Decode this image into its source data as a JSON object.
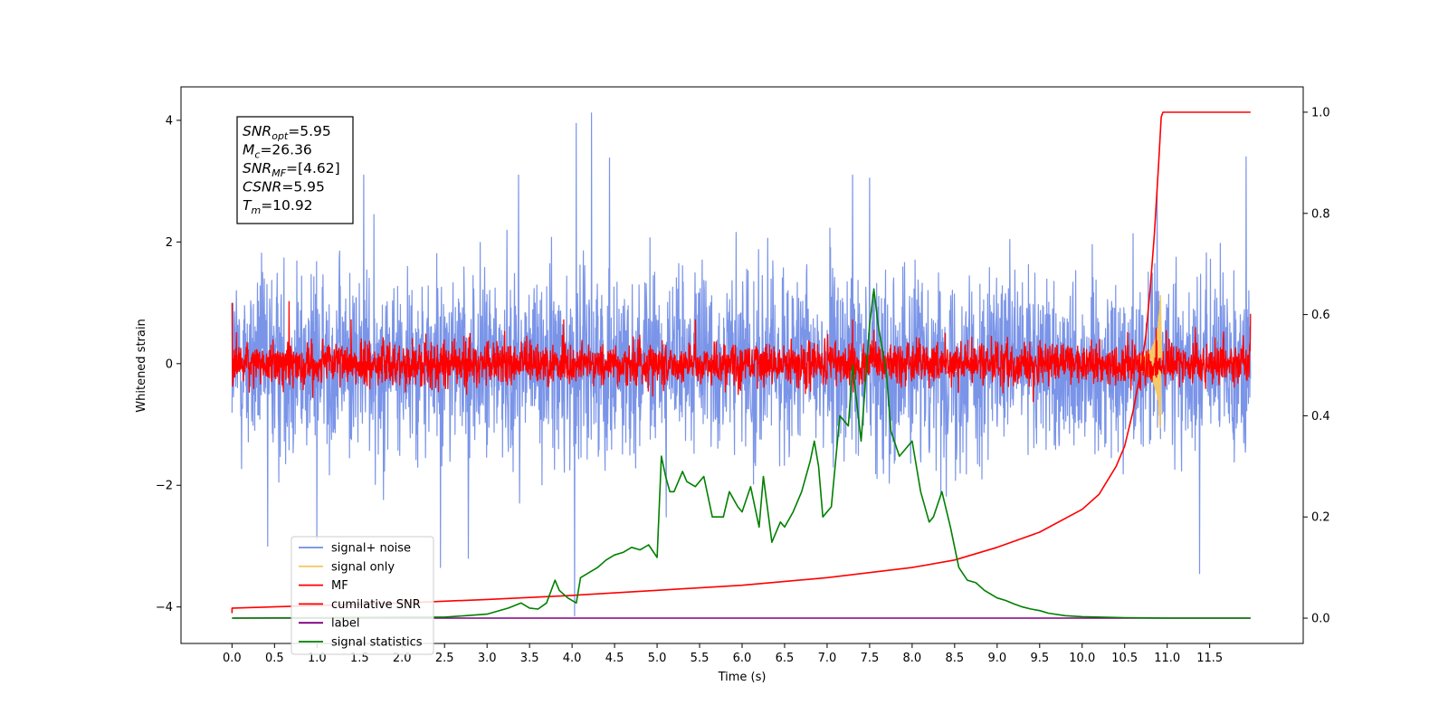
{
  "chart_data": {
    "type": "line",
    "xlabel": "Time (s)",
    "ylabel": "Whitened strain",
    "xlim": [
      -0.6,
      12.6
    ],
    "ylim": [
      -4.6,
      4.55
    ],
    "y2lim": [
      -0.05,
      1.05
    ],
    "x_ticks": [
      0.0,
      0.5,
      1.0,
      1.5,
      2.0,
      2.5,
      3.0,
      3.5,
      4.0,
      4.5,
      5.0,
      5.5,
      6.0,
      6.5,
      7.0,
      7.5,
      8.0,
      8.5,
      9.0,
      9.5,
      10.0,
      10.5,
      11.0,
      11.5
    ],
    "x_tick_labels": [
      "0.0",
      "0.5",
      "1.0",
      "1.5",
      "2.0",
      "2.5",
      "3.0",
      "3.5",
      "4.0",
      "4.5",
      "5.0",
      "5.5",
      "6.0",
      "6.5",
      "7.0",
      "7.5",
      "8.0",
      "8.5",
      "9.0",
      "9.5",
      "10.0",
      "10.5",
      "11.0",
      "11.5"
    ],
    "y_ticks": [
      -4,
      -2,
      0,
      2,
      4
    ],
    "y_tick_labels": [
      "−4",
      "−2",
      "0",
      "2",
      "4"
    ],
    "y2_ticks": [
      0.0,
      0.2,
      0.4,
      0.6,
      0.8,
      1.0
    ],
    "y2_tick_labels": [
      "0.0",
      "0.2",
      "0.4",
      "0.6",
      "0.8",
      "1.0"
    ],
    "grid": false,
    "legend_placement": "lower-left",
    "annotation": {
      "lines": [
        {
          "sym": "SNR",
          "sub": "opt",
          "rest": "=5.95"
        },
        {
          "sym": "M",
          "sub": "c",
          "rest": "=26.36"
        },
        {
          "sym": "SNR",
          "sub": "MF",
          "rest": "=[4.62]"
        },
        {
          "sym": "CSNR",
          "sub": "",
          "rest": "=5.95"
        },
        {
          "sym": "T",
          "sub": "m",
          "rest": "=10.92"
        }
      ]
    },
    "series": [
      {
        "name": "signal+ noise",
        "color": "#6f8be6",
        "axis": "left",
        "style": "noise",
        "x_range": [
          0,
          11.98
        ],
        "std": 0.75,
        "spikes": [
          [
            1.0,
            -2.9
          ],
          [
            1.67,
            2.45
          ],
          [
            4.03,
            -4.15
          ],
          [
            4.05,
            3.95
          ],
          [
            4.23,
            4.12
          ],
          [
            4.44,
            3.38
          ],
          [
            7.3,
            3.1
          ],
          [
            7.5,
            3.05
          ],
          [
            10.88,
            2.95
          ],
          [
            11.38,
            -3.45
          ],
          [
            11.93,
            3.4
          ],
          [
            1.55,
            3.1
          ],
          [
            2.45,
            -3.35
          ],
          [
            2.78,
            -3.2
          ],
          [
            3.37,
            3.1
          ],
          [
            0.42,
            -3.0
          ]
        ]
      },
      {
        "name": "signal only",
        "color": "#f5c96a",
        "axis": "left",
        "style": "chirp",
        "t_merger": 10.92
      },
      {
        "name": "MF",
        "color": "#ff0000",
        "axis": "left",
        "style": "noise",
        "x_range": [
          0,
          11.98
        ],
        "std": 0.18,
        "spikes": [
          [
            0.0,
            1.0
          ],
          [
            0.67,
            1.02
          ],
          [
            0.95,
            -0.55
          ],
          [
            1.4,
            0.72
          ],
          [
            3.9,
            0.72
          ],
          [
            5.45,
            0.72
          ],
          [
            7.3,
            0.72
          ],
          [
            7.55,
            0.55
          ],
          [
            10.87,
            0.58
          ],
          [
            11.98,
            0.82
          ]
        ]
      },
      {
        "name": "cumilative SNR",
        "color": "#ff0000",
        "axis": "right",
        "style": "line",
        "x": [
          0.0,
          0.0,
          0.02,
          1.0,
          2.0,
          3.0,
          4.0,
          5.0,
          6.0,
          7.0,
          8.0,
          8.5,
          9.0,
          9.5,
          10.0,
          10.2,
          10.4,
          10.5,
          10.6,
          10.7,
          10.75,
          10.8,
          10.85,
          10.9,
          10.93,
          10.95,
          11.0,
          11.98
        ],
        "y": [
          0.01,
          0.02,
          0.02,
          0.025,
          0.03,
          0.037,
          0.045,
          0.055,
          0.065,
          0.08,
          0.1,
          0.115,
          0.14,
          0.17,
          0.215,
          0.245,
          0.3,
          0.34,
          0.41,
          0.5,
          0.56,
          0.65,
          0.76,
          0.9,
          0.99,
          1.0,
          1.0,
          1.0
        ]
      },
      {
        "name": "label",
        "color": "#800080",
        "axis": "right",
        "style": "line",
        "x": [
          0.0,
          11.98
        ],
        "y": [
          0.0,
          0.0
        ]
      },
      {
        "name": "signal statistics",
        "color": "#008000",
        "axis": "right",
        "style": "line",
        "x": [
          0.0,
          1.0,
          2.0,
          2.5,
          2.75,
          3.0,
          3.25,
          3.4,
          3.5,
          3.6,
          3.7,
          3.8,
          3.85,
          3.95,
          4.05,
          4.1,
          4.2,
          4.3,
          4.4,
          4.5,
          4.6,
          4.7,
          4.8,
          4.9,
          5.0,
          5.05,
          5.1,
          5.15,
          5.2,
          5.3,
          5.35,
          5.45,
          5.55,
          5.65,
          5.72,
          5.78,
          5.85,
          5.95,
          6.0,
          6.1,
          6.2,
          6.25,
          6.35,
          6.45,
          6.5,
          6.6,
          6.7,
          6.8,
          6.85,
          6.9,
          6.95,
          7.05,
          7.15,
          7.25,
          7.3,
          7.4,
          7.5,
          7.55,
          7.6,
          7.7,
          7.75,
          7.85,
          8.0,
          8.1,
          8.2,
          8.25,
          8.35,
          8.45,
          8.55,
          8.65,
          8.75,
          8.85,
          9.0,
          9.1,
          9.2,
          9.3,
          9.4,
          9.5,
          9.6,
          9.8,
          10.0,
          10.5,
          11.0,
          11.5,
          11.98
        ],
        "y": [
          0.0,
          0.001,
          0.002,
          0.002,
          0.005,
          0.008,
          0.02,
          0.03,
          0.02,
          0.018,
          0.03,
          0.075,
          0.055,
          0.04,
          0.03,
          0.08,
          0.09,
          0.1,
          0.115,
          0.125,
          0.13,
          0.14,
          0.135,
          0.145,
          0.12,
          0.32,
          0.28,
          0.25,
          0.25,
          0.29,
          0.27,
          0.26,
          0.28,
          0.2,
          0.2,
          0.2,
          0.25,
          0.22,
          0.21,
          0.26,
          0.18,
          0.28,
          0.15,
          0.19,
          0.18,
          0.21,
          0.25,
          0.31,
          0.35,
          0.3,
          0.2,
          0.22,
          0.4,
          0.38,
          0.5,
          0.35,
          0.58,
          0.65,
          0.58,
          0.48,
          0.37,
          0.32,
          0.35,
          0.25,
          0.19,
          0.2,
          0.25,
          0.18,
          0.1,
          0.075,
          0.07,
          0.055,
          0.04,
          0.035,
          0.028,
          0.022,
          0.018,
          0.015,
          0.01,
          0.005,
          0.003,
          0.001,
          0.0,
          0.0,
          0.0
        ]
      }
    ]
  }
}
